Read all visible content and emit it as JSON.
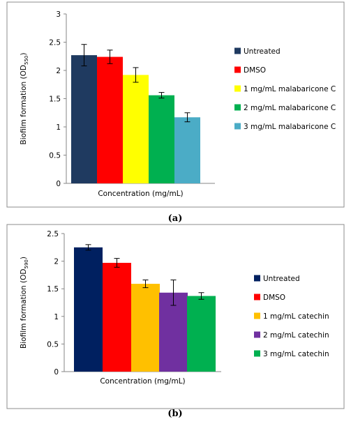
{
  "chart_data": [
    {
      "id": "a",
      "panel_label": "(a)",
      "type": "bar",
      "xlabel": "Concentration (mg/mL)",
      "ylabel_main": "Biofilm formation (OD",
      "ylabel_sub": "550",
      "ylabel_close": ")",
      "ylim": [
        0,
        3
      ],
      "yticks": [
        "0",
        "0.5",
        "1",
        "1.5",
        "2",
        "2.5",
        "3"
      ],
      "ytick_values": [
        0,
        0.5,
        1,
        1.5,
        2,
        2.5,
        3
      ],
      "grid": false,
      "legend_position": "right",
      "series": [
        {
          "name": "Untreated",
          "value": 2.27,
          "error": 0.19,
          "color": "#1f3a60"
        },
        {
          "name": "DMSO",
          "value": 2.24,
          "error": 0.12,
          "color": "#ff0000"
        },
        {
          "name": "1 mg/mL malabaricone C",
          "value": 1.92,
          "error": 0.13,
          "color": "#ffff00"
        },
        {
          "name": "2 mg/mL malabaricone C",
          "value": 1.56,
          "error": 0.05,
          "color": "#00b050"
        },
        {
          "name": "3 mg/mL malabaricone C",
          "value": 1.17,
          "error": 0.08,
          "color": "#4bacc6"
        }
      ]
    },
    {
      "id": "b",
      "panel_label": "(b)",
      "type": "bar",
      "xlabel": "Concentration (mg/mL)",
      "ylabel_main": "Biofilm formation (OD",
      "ylabel_sub": "590",
      "ylabel_close": ")",
      "ylim": [
        0,
        2.5
      ],
      "yticks": [
        "0",
        "0.5",
        "1",
        "1.5",
        "2",
        "2.5"
      ],
      "ytick_values": [
        0,
        0.5,
        1,
        1.5,
        2,
        2.5
      ],
      "grid": false,
      "legend_position": "right",
      "series": [
        {
          "name": "Untreated",
          "value": 2.25,
          "error": 0.05,
          "color": "#002060"
        },
        {
          "name": "DMSO",
          "value": 1.97,
          "error": 0.08,
          "color": "#ff0000"
        },
        {
          "name": "1 mg/mL catechin",
          "value": 1.59,
          "error": 0.07,
          "color": "#ffc000"
        },
        {
          "name": "2 mg/mL catechin",
          "value": 1.43,
          "error": 0.23,
          "color": "#7030a0"
        },
        {
          "name": "3 mg/mL catechin",
          "value": 1.37,
          "error": 0.06,
          "color": "#00b050"
        }
      ]
    }
  ]
}
